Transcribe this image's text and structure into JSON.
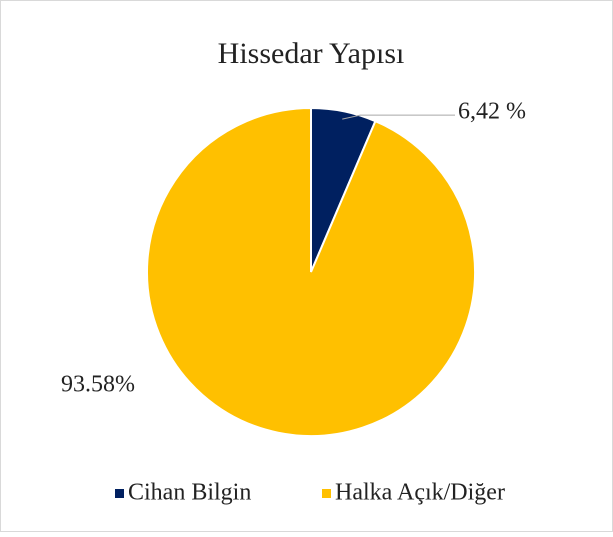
{
  "chart_data": {
    "type": "pie",
    "title": "Hissedar Yapısı",
    "categories": [
      "Cihan Bilgin",
      "Halka Açık/Diğer"
    ],
    "values": [
      6.42,
      93.58
    ],
    "value_labels": [
      "6,42 %",
      "93.58%"
    ],
    "colors": [
      "#002060",
      "#FFC000"
    ],
    "legend": "bottom"
  }
}
